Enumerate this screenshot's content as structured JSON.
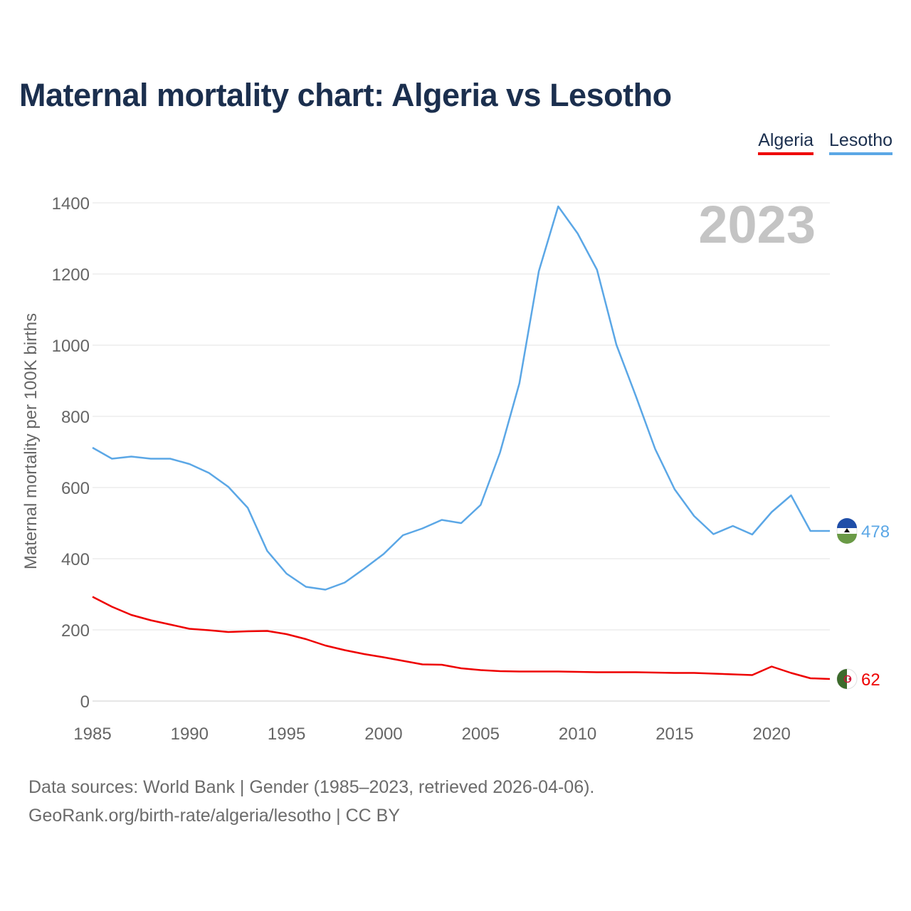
{
  "title": "Maternal mortality chart: Algeria vs Lesotho",
  "legend": [
    "Algeria",
    "Lesotho"
  ],
  "year_label": "2023",
  "sources": {
    "line1": "Data sources: World Bank | Gender (1985–2023, retrieved 2026-04-06).",
    "line2": "GeoRank.org/birth-rate/algeria/lesotho | CC BY"
  },
  "chart_data": {
    "type": "line",
    "title": "Maternal mortality chart: Algeria vs Lesotho",
    "xlabel": "",
    "ylabel": "Maternal mortality per 100K births",
    "xlim": [
      1985,
      2023
    ],
    "ylim": [
      0,
      1400
    ],
    "xticks": [
      1985,
      1990,
      1995,
      2000,
      2005,
      2010,
      2015,
      2020
    ],
    "yticks": [
      0,
      200,
      400,
      600,
      800,
      1000,
      1200,
      1400
    ],
    "grid": true,
    "legend_position": "top-right",
    "x": [
      1985,
      1986,
      1987,
      1988,
      1989,
      1990,
      1991,
      1992,
      1993,
      1994,
      1995,
      1996,
      1997,
      1998,
      1999,
      2000,
      2001,
      2002,
      2003,
      2004,
      2005,
      2006,
      2007,
      2008,
      2009,
      2010,
      2011,
      2012,
      2013,
      2014,
      2015,
      2016,
      2017,
      2018,
      2019,
      2020,
      2021,
      2022,
      2023
    ],
    "series": [
      {
        "name": "Algeria",
        "color": "#ee0000",
        "end_label": "62",
        "values": [
          293,
          265,
          242,
          227,
          215,
          203,
          199,
          194,
          196,
          197,
          188,
          174,
          156,
          143,
          132,
          123,
          113,
          103,
          102,
          92,
          87,
          84,
          83,
          83,
          83,
          82,
          81,
          81,
          81,
          80,
          79,
          79,
          77,
          75,
          73,
          97,
          79,
          64,
          62
        ]
      },
      {
        "name": "Lesotho",
        "color": "#5ba7e6",
        "end_label": "478",
        "values": [
          712,
          681,
          687,
          681,
          681,
          666,
          641,
          602,
          543,
          422,
          358,
          321,
          313,
          333,
          372,
          413,
          466,
          485,
          509,
          500,
          551,
          698,
          893,
          1208,
          1390,
          1314,
          1212,
          1001,
          857,
          708,
          595,
          520,
          469,
          492,
          468,
          531,
          578,
          478,
          478
        ]
      }
    ]
  }
}
